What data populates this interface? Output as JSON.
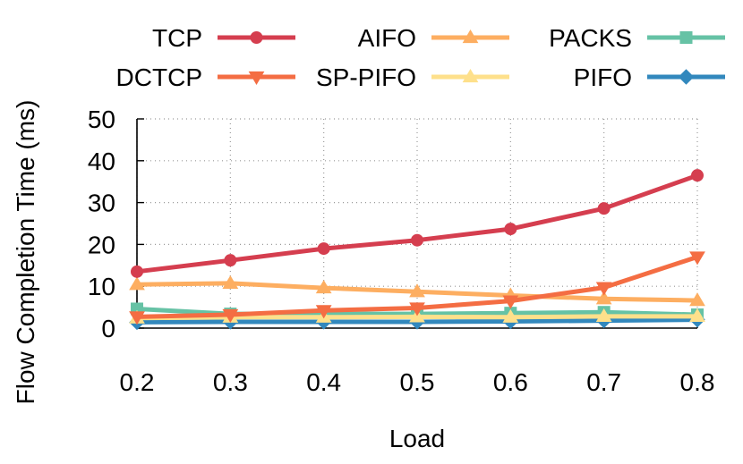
{
  "chart_data": {
    "type": "line",
    "title": "",
    "xlabel": "Load",
    "ylabel": "Flow Completion Time (ms)",
    "x": [
      0.2,
      0.3,
      0.4,
      0.5,
      0.6,
      0.7,
      0.8
    ],
    "x_tick_labels": [
      "0.2",
      "0.3",
      "0.4",
      "0.5",
      "0.6",
      "0.7",
      "0.8"
    ],
    "xlim": [
      0.2,
      0.8
    ],
    "ylim": [
      0,
      50
    ],
    "y_ticks": [
      0,
      10,
      20,
      30,
      40,
      50
    ],
    "y_tick_labels": [
      "0",
      "10",
      "20",
      "30",
      "40",
      "50"
    ],
    "grid": true,
    "legend_position": "top",
    "series": [
      {
        "name": "TCP",
        "color": "#d53e4f",
        "marker": "circle",
        "values": [
          13.5,
          16.2,
          19.0,
          21.0,
          23.7,
          28.6,
          36.5
        ]
      },
      {
        "name": "DCTCP",
        "color": "#f46d43",
        "marker": "triangle-down",
        "values": [
          2.7,
          3.2,
          4.2,
          4.8,
          6.5,
          9.7,
          17.0
        ]
      },
      {
        "name": "AIFO",
        "color": "#fdae61",
        "marker": "triangle-up",
        "values": [
          10.4,
          10.7,
          9.6,
          8.7,
          7.8,
          7.0,
          6.6
        ]
      },
      {
        "name": "SP-PIFO",
        "color": "#fee08b",
        "marker": "triangle-up",
        "values": [
          2.4,
          2.6,
          2.6,
          2.7,
          2.6,
          2.8,
          2.8
        ]
      },
      {
        "name": "PACKS",
        "color": "#66c2a5",
        "marker": "square",
        "values": [
          4.6,
          3.4,
          3.4,
          3.4,
          3.6,
          3.8,
          3.2
        ]
      },
      {
        "name": "PIFO",
        "color": "#3288bd",
        "marker": "diamond",
        "values": [
          1.4,
          1.5,
          1.5,
          1.5,
          1.6,
          1.8,
          2.0
        ]
      }
    ]
  }
}
